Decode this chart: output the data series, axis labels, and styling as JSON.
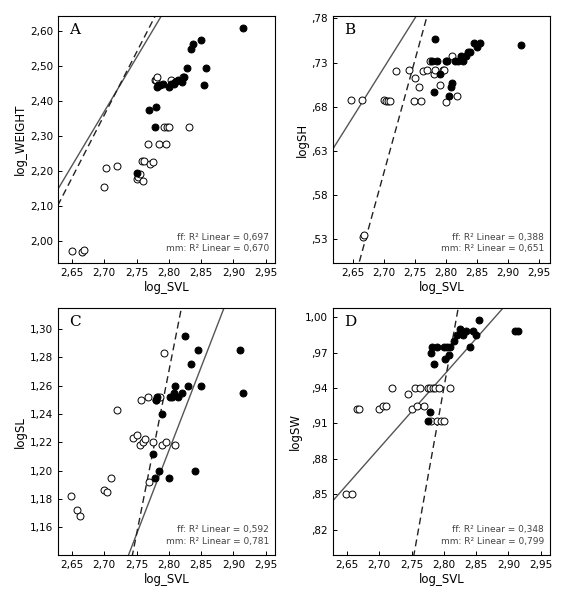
{
  "panels": [
    {
      "label": "A",
      "xlabel": "log_SVL",
      "ylabel": "log_WEIGHT",
      "xlim": [
        2.628,
        2.965
      ],
      "ylim": [
        1.935,
        2.645
      ],
      "xticks": [
        2.65,
        2.7,
        2.75,
        2.8,
        2.85,
        2.9,
        2.95
      ],
      "yticks": [
        2.0,
        2.1,
        2.2,
        2.3,
        2.4,
        2.5,
        2.6
      ],
      "ytick_labels": [
        "2,00",
        "2,10",
        "2,20",
        "2,30",
        "2,40",
        "2,50",
        "2,60"
      ],
      "xtick_labels": [
        "2,65",
        "2,70",
        "2,75",
        "2,80",
        "2,85",
        "2,90",
        "2,95"
      ],
      "open_x": [
        2.65,
        2.665,
        2.668,
        2.7,
        2.702,
        2.72,
        2.75,
        2.752,
        2.755,
        2.758,
        2.76,
        2.762,
        2.768,
        2.771,
        2.775,
        2.778,
        2.78,
        2.782,
        2.785,
        2.793,
        2.795,
        2.797,
        2.8,
        2.803,
        2.822,
        2.832
      ],
      "open_y": [
        1.97,
        1.968,
        1.972,
        2.153,
        2.208,
        2.213,
        2.178,
        2.182,
        2.192,
        2.228,
        2.172,
        2.228,
        2.278,
        2.22,
        2.225,
        2.46,
        2.46,
        2.468,
        2.278,
        2.325,
        2.278,
        2.325,
        2.325,
        2.46,
        2.47,
        2.325
      ],
      "filled_x": [
        2.75,
        2.77,
        2.778,
        2.78,
        2.782,
        2.784,
        2.787,
        2.791,
        2.8,
        2.803,
        2.808,
        2.81,
        2.815,
        2.82,
        2.823,
        2.828,
        2.835,
        2.838,
        2.85,
        2.855,
        2.858,
        2.915
      ],
      "filled_y": [
        2.195,
        2.375,
        2.325,
        2.383,
        2.44,
        2.445,
        2.445,
        2.45,
        2.44,
        2.45,
        2.45,
        2.455,
        2.46,
        2.455,
        2.47,
        2.495,
        2.55,
        2.565,
        2.575,
        2.445,
        2.495,
        2.61
      ],
      "ff_slope": 3.1,
      "ff_intercept": -6.0,
      "mm_slope": 3.6,
      "mm_intercept": -7.36,
      "annotation": "ff: R² Linear = 0,697\nmm: R² Linear = 0,670"
    },
    {
      "label": "B",
      "xlabel": "log_SVL",
      "ylabel": "logSH",
      "xlim": [
        2.618,
        2.968
      ],
      "ylim": [
        0.503,
        0.783
      ],
      "xticks": [
        2.65,
        2.7,
        2.75,
        2.8,
        2.85,
        2.9,
        2.95
      ],
      "yticks": [
        0.53,
        0.58,
        0.63,
        0.68,
        0.73,
        0.78
      ],
      "ytick_labels": [
        ",53",
        ",58",
        ",63",
        ",68",
        ",73",
        ",78"
      ],
      "xtick_labels": [
        "2,65",
        "2,70",
        "2,75",
        "2,80",
        "2,85",
        "2,90",
        "2,95"
      ],
      "open_x": [
        2.648,
        2.665,
        2.667,
        2.668,
        2.7,
        2.703,
        2.706,
        2.71,
        2.72,
        2.74,
        2.748,
        2.75,
        2.756,
        2.76,
        2.763,
        2.77,
        2.775,
        2.78,
        2.783,
        2.79,
        2.795,
        2.797,
        2.8,
        2.81,
        2.818
      ],
      "open_y": [
        0.688,
        0.688,
        0.533,
        0.535,
        0.688,
        0.686,
        0.686,
        0.687,
        0.72,
        0.722,
        0.687,
        0.712,
        0.702,
        0.687,
        0.72,
        0.722,
        0.732,
        0.717,
        0.722,
        0.705,
        0.721,
        0.722,
        0.685,
        0.737,
        0.692
      ],
      "filled_x": [
        2.778,
        2.78,
        2.782,
        2.785,
        2.79,
        2.8,
        2.802,
        2.805,
        2.808,
        2.81,
        2.815,
        2.82,
        2.825,
        2.828,
        2.832,
        2.835,
        2.838,
        2.845,
        2.85,
        2.855,
        2.92
      ],
      "filled_y": [
        0.732,
        0.697,
        0.757,
        0.732,
        0.717,
        0.732,
        0.732,
        0.692,
        0.702,
        0.707,
        0.732,
        0.732,
        0.737,
        0.732,
        0.737,
        0.742,
        0.742,
        0.752,
        0.747,
        0.752,
        0.75
      ],
      "ff_slope": 1.12,
      "ff_intercept": -2.3,
      "mm_slope": 2.55,
      "mm_intercept": -6.28,
      "annotation": "ff: R² Linear = 0,388\nmm: R² Linear = 0,651"
    },
    {
      "label": "C",
      "xlabel": "log_SVL",
      "ylabel": "logSL",
      "xlim": [
        2.628,
        2.965
      ],
      "ylim": [
        1.14,
        1.315
      ],
      "xticks": [
        2.65,
        2.7,
        2.75,
        2.8,
        2.85,
        2.9,
        2.95
      ],
      "yticks": [
        1.16,
        1.18,
        1.2,
        1.22,
        1.24,
        1.26,
        1.28,
        1.3
      ],
      "ytick_labels": [
        "1,16",
        "1,18",
        "1,20",
        "1,22",
        "1,24",
        "1,26",
        "1,28",
        "1,30"
      ],
      "xtick_labels": [
        "2,65",
        "2,70",
        "2,75",
        "2,80",
        "2,85",
        "2,90",
        "2,95"
      ],
      "open_x": [
        2.648,
        2.658,
        2.662,
        2.7,
        2.705,
        2.71,
        2.72,
        2.745,
        2.75,
        2.755,
        2.757,
        2.76,
        2.763,
        2.768,
        2.77,
        2.775,
        2.78,
        2.783,
        2.786,
        2.79,
        2.793,
        2.795,
        2.81
      ],
      "open_y": [
        1.182,
        1.172,
        1.168,
        1.186,
        1.185,
        1.195,
        1.243,
        1.223,
        1.225,
        1.218,
        1.25,
        1.22,
        1.222,
        1.252,
        1.192,
        1.22,
        1.25,
        1.252,
        1.252,
        1.218,
        1.283,
        1.22,
        1.218
      ],
      "filled_x": [
        2.775,
        2.778,
        2.78,
        2.782,
        2.785,
        2.79,
        2.8,
        2.802,
        2.805,
        2.808,
        2.81,
        2.815,
        2.82,
        2.825,
        2.83,
        2.835,
        2.84,
        2.845,
        2.85,
        2.91,
        2.915
      ],
      "filled_y": [
        1.212,
        1.195,
        1.25,
        1.252,
        1.2,
        1.24,
        1.195,
        1.252,
        1.252,
        1.255,
        1.26,
        1.252,
        1.255,
        1.295,
        1.26,
        1.275,
        1.2,
        1.285,
        1.26,
        1.285,
        1.255
      ],
      "ff_slope": 1.18,
      "ff_intercept": -2.09,
      "mm_slope": 2.3,
      "mm_intercept": -5.17,
      "annotation": "ff: R² Linear = 0,592\nmm: R² Linear = 0,781"
    },
    {
      "label": "D",
      "xlabel": "log_SVL",
      "ylabel": "logSW",
      "xlim": [
        2.628,
        2.965
      ],
      "ylim": [
        0.798,
        1.008
      ],
      "xticks": [
        2.65,
        2.7,
        2.75,
        2.8,
        2.85,
        2.9,
        2.95
      ],
      "yticks": [
        0.82,
        0.85,
        0.88,
        0.91,
        0.94,
        0.97,
        1.0
      ],
      "ytick_labels": [
        ",82",
        ",85",
        ",88",
        ",91",
        ",94",
        ",97",
        "1,00"
      ],
      "xtick_labels": [
        "2,65",
        "2,70",
        "2,75",
        "2,80",
        "2,85",
        "2,90",
        "2,95"
      ],
      "open_x": [
        2.648,
        2.658,
        2.665,
        2.668,
        2.7,
        2.705,
        2.71,
        2.72,
        2.745,
        2.75,
        2.755,
        2.758,
        2.763,
        2.77,
        2.775,
        2.778,
        2.78,
        2.783,
        2.786,
        2.79,
        2.793,
        2.795,
        2.8,
        2.81
      ],
      "open_y": [
        0.85,
        0.85,
        0.922,
        0.922,
        0.922,
        0.925,
        0.925,
        0.94,
        0.935,
        0.922,
        0.94,
        0.925,
        0.94,
        0.925,
        0.94,
        0.94,
        0.912,
        0.94,
        0.94,
        0.912,
        0.94,
        0.912,
        0.912,
        0.94
      ],
      "filled_x": [
        2.775,
        2.778,
        2.78,
        2.782,
        2.785,
        2.79,
        2.8,
        2.802,
        2.805,
        2.808,
        2.81,
        2.815,
        2.82,
        2.825,
        2.83,
        2.835,
        2.84,
        2.845,
        2.85,
        2.855,
        2.91,
        2.915
      ],
      "filled_y": [
        0.912,
        0.92,
        0.97,
        0.975,
        0.96,
        0.975,
        0.975,
        0.965,
        0.975,
        0.968,
        0.975,
        0.98,
        0.985,
        0.99,
        0.985,
        0.988,
        0.975,
        0.988,
        0.985,
        0.998,
        0.988,
        0.988
      ],
      "ff_slope": 0.62,
      "ff_intercept": -0.785,
      "mm_slope": 3.05,
      "mm_intercept": -7.6,
      "annotation": "ff: R² Linear = 0,348\nmm: R² Linear = 0,799"
    }
  ],
  "bg_color": "#ffffff",
  "marker_size": 5,
  "open_color": "white",
  "filled_color": "black",
  "edge_color": "black",
  "solid_line_color": "#555555",
  "dashed_line_color": "#222222",
  "annotation_fontsize": 6.5,
  "axis_label_fontsize": 8.5,
  "tick_label_fontsize": 7.5,
  "panel_label_fontsize": 11
}
